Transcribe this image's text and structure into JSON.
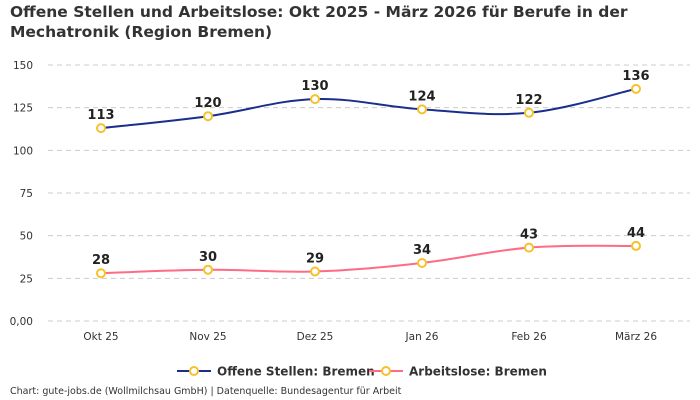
{
  "chart_data": {
    "type": "line",
    "title": "Offene Stellen und Arbeitslose: Okt 2025 - März 2026 für Berufe in der Mechatronik (Region Bremen)",
    "categories": [
      "Okt 25",
      "Nov 25",
      "Dez 25",
      "Jan 26",
      "Feb 26",
      "März 26"
    ],
    "series": [
      {
        "name": "Offene Stellen: Bremen",
        "values": [
          113,
          120,
          130,
          124,
          122,
          136
        ],
        "color": "#1a2e8c"
      },
      {
        "name": "Arbeitslose: Bremen",
        "values": [
          28,
          30,
          29,
          34,
          43,
          44
        ],
        "color": "#ff6b85"
      }
    ],
    "marker_color": "#f5c22b",
    "ylim": [
      0,
      150
    ],
    "yticks": [
      0,
      25,
      50,
      75,
      100,
      125,
      150
    ],
    "ytick_labels": [
      "0,00",
      "25",
      "50",
      "75",
      "100",
      "125",
      "150"
    ],
    "grid": true,
    "legend_position": "bottom",
    "xlabel": "",
    "ylabel": ""
  },
  "caption": "Chart: gute-jobs.de (Wollmilchsau GmbH) | Datenquelle: Bundesagentur für Arbeit"
}
